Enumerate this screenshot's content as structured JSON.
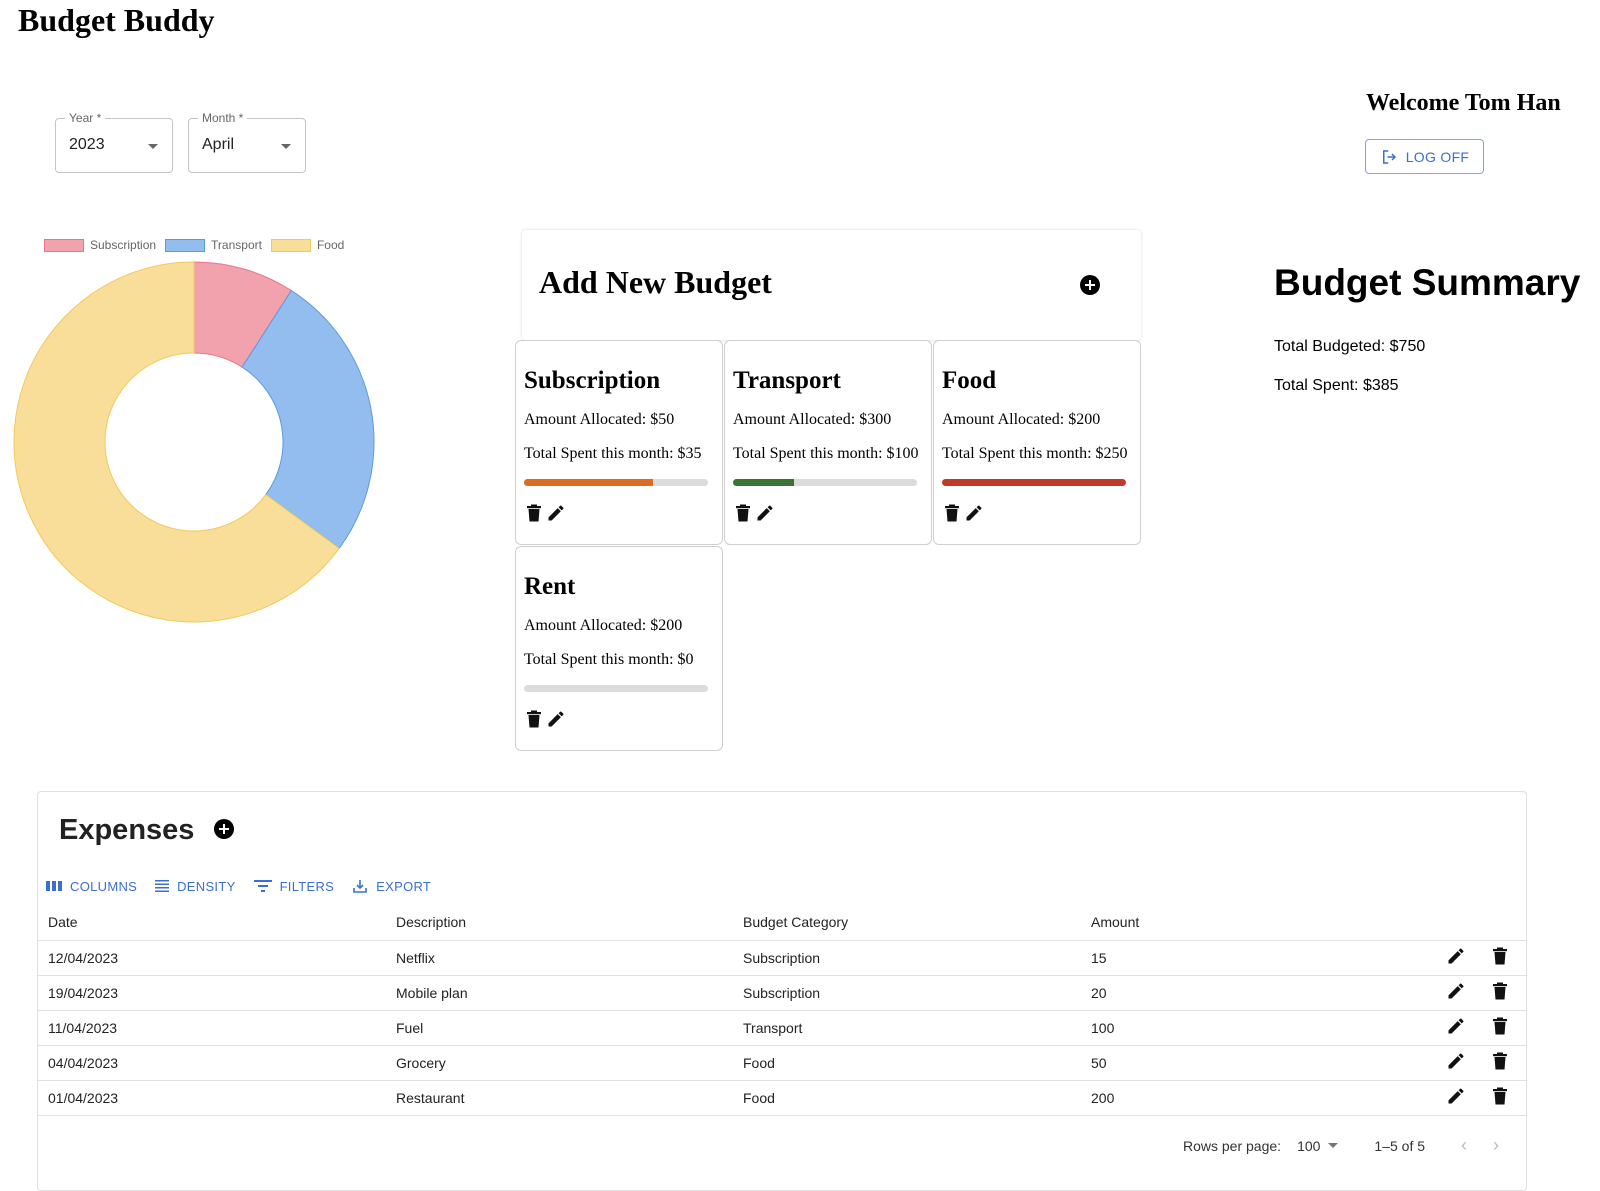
{
  "app": {
    "title": "Budget Buddy"
  },
  "filters": {
    "year": {
      "label": "Year *",
      "value": "2023"
    },
    "month": {
      "label": "Month *",
      "value": "April"
    }
  },
  "user": {
    "welcome": "Welcome Tom Han",
    "logoff_label": "LOG OFF"
  },
  "add_budget": {
    "title": "Add New Budget"
  },
  "budgets": [
    {
      "name": "Subscription",
      "allocated": "Amount Allocated: $50",
      "spent": "Total Spent this month: $35",
      "progress_pct": 70,
      "bar_color": "#de6b22"
    },
    {
      "name": "Transport",
      "allocated": "Amount Allocated: $300",
      "spent": "Total Spent this month: $100",
      "progress_pct": 33.3,
      "bar_color": "#3b7335"
    },
    {
      "name": "Food",
      "allocated": "Amount Allocated: $200",
      "spent": "Total Spent this month: $250",
      "progress_pct": 100,
      "bar_color": "#c0392b"
    },
    {
      "name": "Rent",
      "allocated": "Amount Allocated: $200",
      "spent": "Total Spent this month: $0",
      "progress_pct": 0,
      "bar_color": "#dcdcdc"
    }
  ],
  "summary": {
    "title": "Budget Summary",
    "total_budgeted": "Total Budgeted: $750",
    "total_spent": "Total Spent: $385"
  },
  "expenses": {
    "title": "Expenses",
    "toolbar": {
      "columns": "COLUMNS",
      "density": "DENSITY",
      "filters": "FILTERS",
      "export": "EXPORT"
    },
    "headers": {
      "date": "Date",
      "description": "Description",
      "category": "Budget Category",
      "amount": "Amount"
    },
    "rows": [
      {
        "date": "12/04/2023",
        "description": "Netflix",
        "category": "Subscription",
        "amount": "15"
      },
      {
        "date": "19/04/2023",
        "description": "Mobile plan",
        "category": "Subscription",
        "amount": "20"
      },
      {
        "date": "11/04/2023",
        "description": "Fuel",
        "category": "Transport",
        "amount": "100"
      },
      {
        "date": "04/04/2023",
        "description": "Grocery",
        "category": "Food",
        "amount": "50"
      },
      {
        "date": "01/04/2023",
        "description": "Restaurant",
        "category": "Food",
        "amount": "200"
      }
    ],
    "pagination": {
      "rows_per_page_label": "Rows per page:",
      "rows_per_page": "100",
      "range": "1–5 of 5"
    }
  },
  "chart_data": {
    "type": "pie",
    "variant": "doughnut",
    "title": "",
    "categories": [
      "Subscription",
      "Transport",
      "Food"
    ],
    "values": [
      35,
      100,
      250
    ],
    "colors": [
      "#f2a2ad",
      "#92bdee",
      "#f9de9a"
    ],
    "border_colors": [
      "#e8768a",
      "#5b9be0",
      "#f2c95d"
    ],
    "legend_position": "top"
  }
}
